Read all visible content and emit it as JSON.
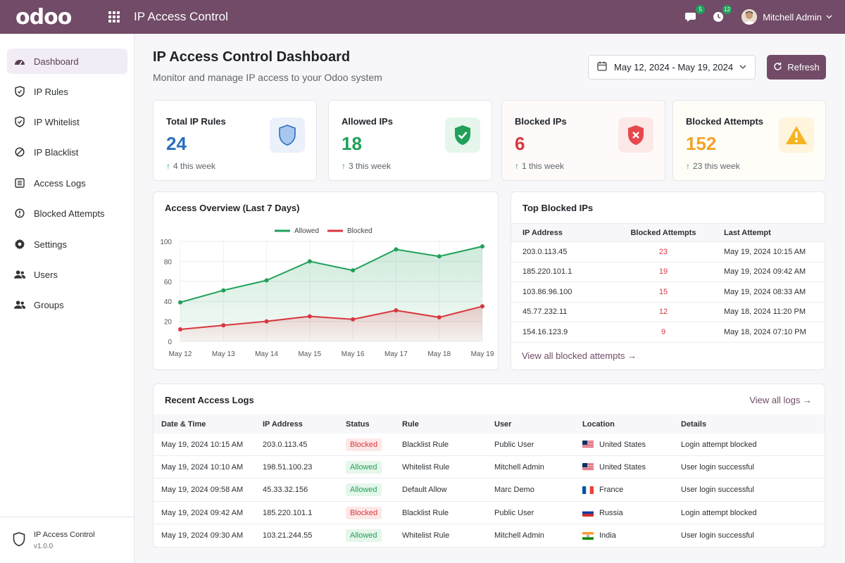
{
  "topbar": {
    "logo": "odoo",
    "app_title": "IP Access Control",
    "messages_badge": "5",
    "activities_badge": "12",
    "user_name": "Mitchell Admin"
  },
  "sidebar": {
    "items": [
      {
        "label": "Dashboard",
        "icon": "dashboard-icon"
      },
      {
        "label": "IP Rules",
        "icon": "shield-icon"
      },
      {
        "label": "IP Whitelist",
        "icon": "shield-check-icon"
      },
      {
        "label": "IP Blacklist",
        "icon": "ban-icon"
      },
      {
        "label": "Access Logs",
        "icon": "list-icon"
      },
      {
        "label": "Blocked Attempts",
        "icon": "alert-circle-icon"
      },
      {
        "label": "Settings",
        "icon": "gear-icon"
      },
      {
        "label": "Users",
        "icon": "users-icon"
      },
      {
        "label": "Groups",
        "icon": "groups-icon"
      }
    ],
    "footer_name": "IP Access Control",
    "footer_version": "v1.0.0"
  },
  "header": {
    "title": "IP Access Control Dashboard",
    "subtitle": "Monitor and manage IP access to your Odoo system",
    "date_range": "May 12, 2024 - May 19, 2024",
    "refresh_label": "Refresh"
  },
  "stats": [
    {
      "label": "Total IP Rules",
      "value": "24",
      "delta": "4 this week",
      "color": "#2a6fbf"
    },
    {
      "label": "Allowed IPs",
      "value": "18",
      "delta": "3 this week",
      "color": "#21a05a"
    },
    {
      "label": "Blocked IPs",
      "value": "6",
      "delta": "1 this week",
      "color": "#d9363e"
    },
    {
      "label": "Blocked Attempts",
      "value": "152",
      "delta": "23 this week",
      "color": "#f0a428"
    }
  ],
  "chart_data": {
    "type": "area",
    "title": "Access Overview (Last 7 Days)",
    "categories": [
      "May 12",
      "May 13",
      "May 14",
      "May 15",
      "May 16",
      "May 17",
      "May 18",
      "May 19"
    ],
    "series": [
      {
        "name": "Allowed",
        "values": [
          39,
          51,
          61,
          80,
          71,
          92,
          85,
          95
        ],
        "color": "#21a05a"
      },
      {
        "name": "Blocked",
        "values": [
          12,
          16,
          20,
          25,
          22,
          31,
          24,
          35
        ],
        "color": "#d9363e"
      }
    ],
    "yticks": [
      "0",
      "20",
      "40",
      "60",
      "80",
      "100"
    ],
    "ylim": [
      0,
      100
    ],
    "legend": "top-center",
    "grid": true
  },
  "top_blocked": {
    "title": "Top Blocked IPs",
    "headers": [
      "IP Address",
      "Blocked Attempts",
      "Last Attempt"
    ],
    "rows": [
      {
        "ip": "203.0.113.45",
        "count": "23",
        "last": "May 19, 2024 10:15 AM"
      },
      {
        "ip": "185.220.101.1",
        "count": "19",
        "last": "May 19, 2024 09:42 AM"
      },
      {
        "ip": "103.86.96.100",
        "count": "15",
        "last": "May 19, 2024 08:33 AM"
      },
      {
        "ip": "45.77.232.11",
        "count": "12",
        "last": "May 18, 2024 11:20 PM"
      },
      {
        "ip": "154.16.123.9",
        "count": "9",
        "last": "May 18, 2024 07:10 PM"
      }
    ],
    "view_all": "View all blocked attempts →"
  },
  "recent_logs": {
    "title": "Recent Access Logs",
    "view_all": "View all logs →",
    "headers": [
      "Date & Time",
      "IP Address",
      "Status",
      "Rule",
      "User",
      "Location",
      "Details"
    ],
    "rows": [
      {
        "time": "May 19, 2024 10:15 AM",
        "ip": "203.0.113.45",
        "status": "Blocked",
        "rule": "Blacklist Rule",
        "user": "Public User",
        "location": "United States",
        "flag": "us",
        "details": "Login attempt blocked"
      },
      {
        "time": "May 19, 2024 10:10 AM",
        "ip": "198.51.100.23",
        "status": "Allowed",
        "rule": "Whitelist Rule",
        "user": "Mitchell Admin",
        "location": "United States",
        "flag": "us",
        "details": "User login successful"
      },
      {
        "time": "May 19, 2024 09:58 AM",
        "ip": "45.33.32.156",
        "status": "Allowed",
        "rule": "Default Allow",
        "user": "Marc Demo",
        "location": "France",
        "flag": "fr",
        "details": "User login successful"
      },
      {
        "time": "May 19, 2024 09:42 AM",
        "ip": "185.220.101.1",
        "status": "Blocked",
        "rule": "Blacklist Rule",
        "user": "Public User",
        "location": "Russia",
        "flag": "ru",
        "details": "Login attempt blocked"
      },
      {
        "time": "May 19, 2024 09:30 AM",
        "ip": "103.21.244.55",
        "status": "Allowed",
        "rule": "Whitelist Rule",
        "user": "Mitchell Admin",
        "location": "India",
        "flag": "in",
        "details": "User login successful"
      }
    ]
  }
}
